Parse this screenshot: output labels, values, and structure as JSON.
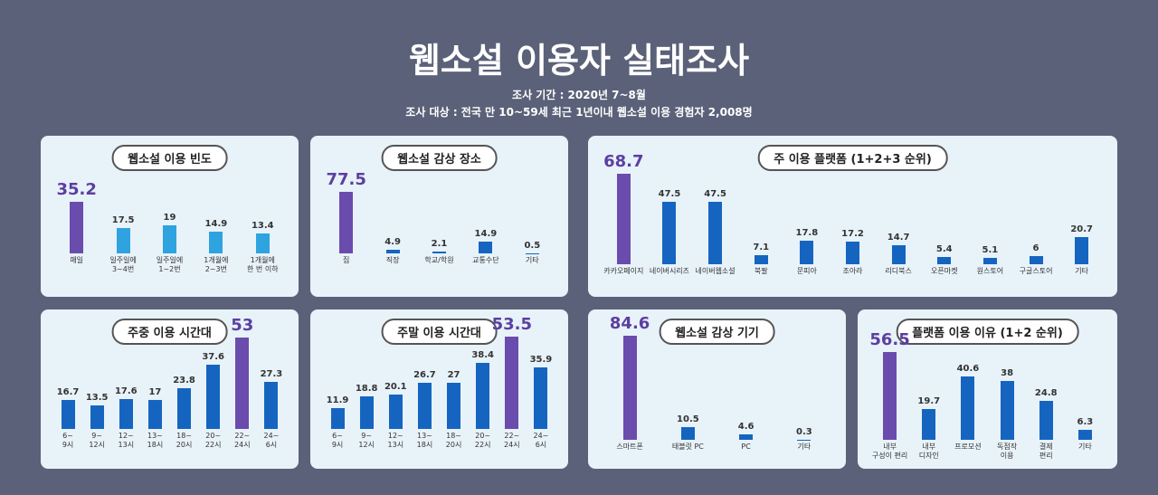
{
  "header": {
    "title": "웹소설 이용자 실태조사",
    "period": "조사 기간 : 2020년 7~8월",
    "target": "조사 대상 : 전국 만 10~59세 최근 1년이내 웹소설 이용 경험자 2,008명"
  },
  "chart_data": [
    {
      "type": "bar",
      "title": "웹소설 이용 빈도",
      "categories": [
        "매일",
        "일주일에\n3~4번",
        "일주일에\n1~2번",
        "1개월에\n2~3번",
        "1개월에\n한 번 이하"
      ],
      "values": [
        35.2,
        17.5,
        19,
        14.9,
        13.4
      ],
      "colors": [
        "#6a4cad",
        "#2ea3e0",
        "#2ea3e0",
        "#2ea3e0",
        "#2ea3e0"
      ]
    },
    {
      "type": "bar",
      "title": "웹소설 감상 장소",
      "categories": [
        "집",
        "직장",
        "학교/학원",
        "교통수단",
        "기타"
      ],
      "values": [
        77.5,
        4.9,
        2.1,
        14.9,
        0.5
      ],
      "colors": [
        "#6a4cad",
        "#1565c0",
        "#1565c0",
        "#1565c0",
        "#1565c0"
      ]
    },
    {
      "type": "bar",
      "title": "주 이용 플랫폼 (1+2+3 순위)",
      "categories": [
        "카카오페이지",
        "네이버시리즈",
        "네이버웹소설",
        "북팔",
        "문피아",
        "조아라",
        "리디북스",
        "오픈마켓",
        "원스토어",
        "구글스토어",
        "기타"
      ],
      "values": [
        68.7,
        47.5,
        47.5,
        7.1,
        17.8,
        17.2,
        14.7,
        5.4,
        5.1,
        6,
        20.7
      ],
      "colors": [
        "#6a4cad",
        "#1565c0",
        "#1565c0",
        "#1565c0",
        "#1565c0",
        "#1565c0",
        "#1565c0",
        "#1565c0",
        "#1565c0",
        "#1565c0",
        "#1565c0"
      ]
    },
    {
      "type": "bar",
      "title": "주중 이용 시간대",
      "categories": [
        "6~\n9시",
        "9~\n12시",
        "12~\n13시",
        "13~\n18시",
        "18~\n20시",
        "20~\n22시",
        "22~\n24시",
        "24~\n6시"
      ],
      "values": [
        16.7,
        13.5,
        17.6,
        17,
        23.8,
        37.6,
        53,
        27.3
      ],
      "colors": [
        "#1565c0",
        "#1565c0",
        "#1565c0",
        "#1565c0",
        "#1565c0",
        "#1565c0",
        "#6a4cad",
        "#1565c0"
      ]
    },
    {
      "type": "bar",
      "title": "주말 이용 시간대",
      "categories": [
        "6~\n9시",
        "9~\n12시",
        "12~\n13시",
        "13~\n18시",
        "18~\n20시",
        "20~\n22시",
        "22~\n24시",
        "24~\n6시"
      ],
      "values": [
        11.9,
        18.8,
        20.1,
        26.7,
        27,
        38.4,
        53.5,
        35.9
      ],
      "colors": [
        "#1565c0",
        "#1565c0",
        "#1565c0",
        "#1565c0",
        "#1565c0",
        "#1565c0",
        "#6a4cad",
        "#1565c0"
      ]
    },
    {
      "type": "bar",
      "title": "웹소설 감상 기기",
      "categories": [
        "스마트폰",
        "태블릿 PC",
        "PC",
        "기타"
      ],
      "values": [
        84.6,
        10.5,
        4.6,
        0.3
      ],
      "colors": [
        "#6a4cad",
        "#1565c0",
        "#1565c0",
        "#1565c0"
      ]
    },
    {
      "type": "bar",
      "title": "플랫폼 이용 이유 (1+2 순위)",
      "categories": [
        "내부\n구성이 편리",
        "내부\n디자인",
        "프로모션",
        "독점작\n이용",
        "결제\n편리",
        "기타"
      ],
      "values": [
        56.5,
        19.7,
        40.6,
        38,
        24.8,
        6.3
      ],
      "colors": [
        "#6a4cad",
        "#1565c0",
        "#1565c0",
        "#1565c0",
        "#1565c0",
        "#1565c0"
      ]
    }
  ]
}
